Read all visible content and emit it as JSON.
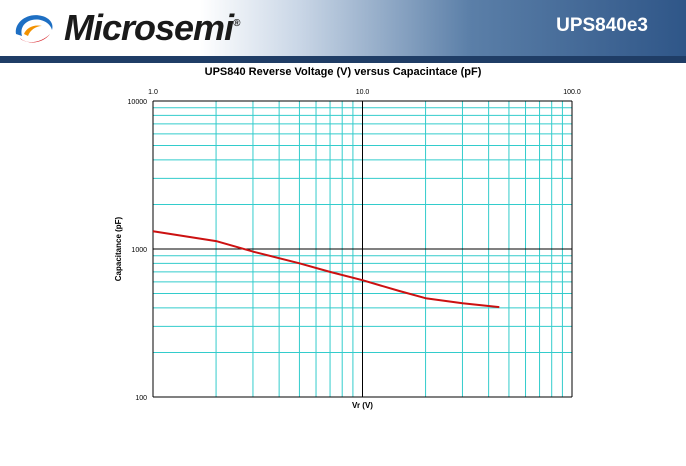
{
  "header": {
    "brand": "Microsemi",
    "brand_mark": "®",
    "part_number": "UPS840e3",
    "logo_icon": "microsemi-swirl-logo",
    "colors": {
      "logo_blue": "#1e6fc3",
      "logo_red": "#d8232a",
      "logo_orange": "#f39200",
      "band": "#2f5688",
      "rule": "#1f3d66"
    }
  },
  "chart_data": {
    "type": "line",
    "title": "UPS840 Reverse Voltage (V) versus Capacintace (pF)",
    "xlabel": "Vr (V)",
    "ylabel": "Capacitance (pF)",
    "xscale": "log",
    "yscale": "log",
    "xlim": [
      1,
      100
    ],
    "ylim": [
      100,
      10000
    ],
    "xticks": [
      "1.0",
      "10.0",
      "100.0"
    ],
    "yticks": [
      "10000",
      "1000",
      "100"
    ],
    "grid": true,
    "colors": {
      "grid": "#33cccc",
      "major_grid": "#000000",
      "line": "#cc1111"
    },
    "series": [
      {
        "x": [
          1,
          2,
          3,
          5,
          7,
          10,
          15,
          20,
          30,
          45
        ],
        "y": [
          1320,
          1130,
          960,
          800,
          700,
          615,
          520,
          465,
          430,
          405
        ]
      }
    ]
  }
}
